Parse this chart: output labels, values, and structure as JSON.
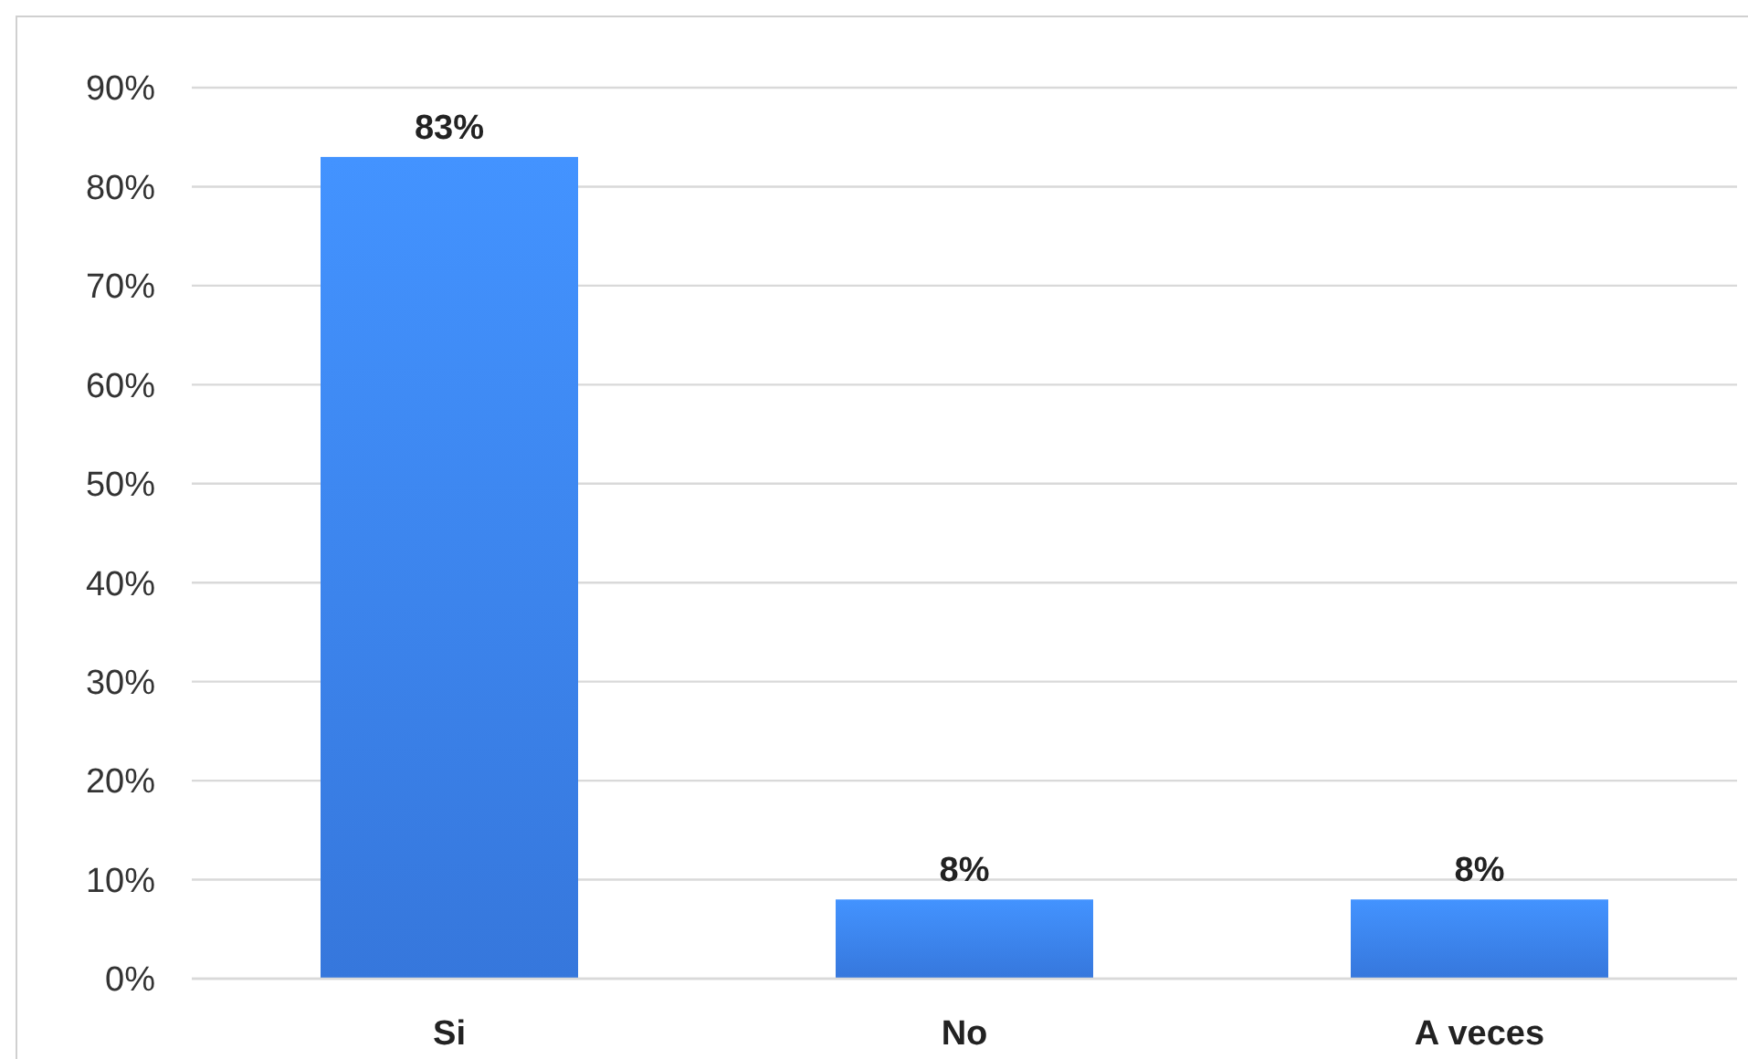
{
  "chart_data": {
    "type": "bar",
    "categories": [
      "Si",
      "No",
      "A veces"
    ],
    "values": [
      83,
      8,
      8
    ],
    "value_labels": [
      "83%",
      "8%",
      "8%"
    ],
    "color": "#3c84f5",
    "ylim": [
      0,
      90
    ],
    "yticks": [
      {
        "value": 0,
        "label": "0%"
      },
      {
        "value": 10,
        "label": "10%"
      },
      {
        "value": 20,
        "label": "20%"
      },
      {
        "value": 30,
        "label": "30%"
      },
      {
        "value": 40,
        "label": "40%"
      },
      {
        "value": 50,
        "label": "50%"
      },
      {
        "value": 60,
        "label": "60%"
      },
      {
        "value": 70,
        "label": "70%"
      },
      {
        "value": 80,
        "label": "80%"
      },
      {
        "value": 90,
        "label": "90%"
      }
    ],
    "grid": "y"
  }
}
